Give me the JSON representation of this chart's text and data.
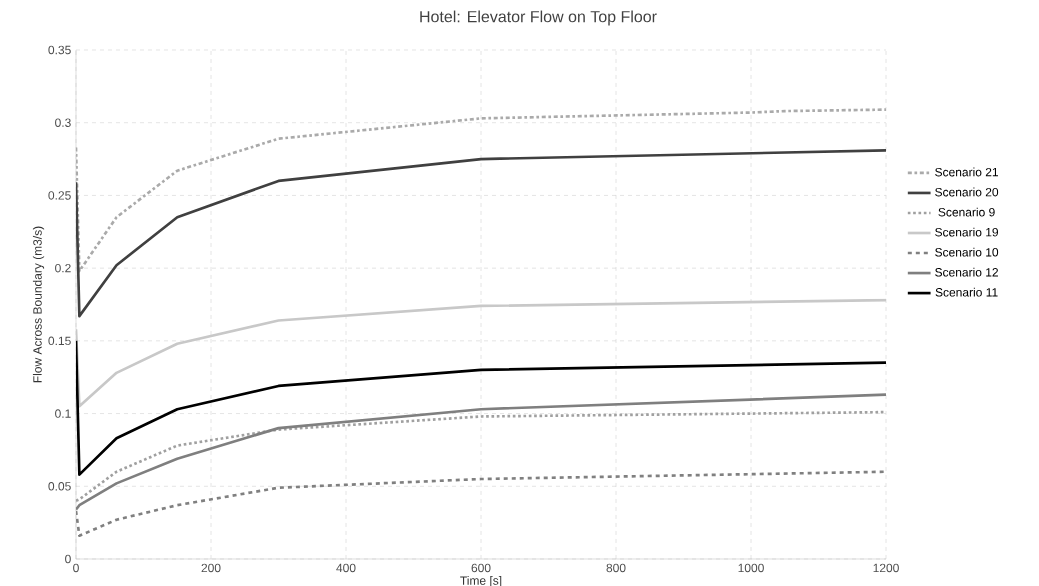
{
  "chart_data": {
    "type": "line",
    "title": "Hotel: Elevator Flow on Top Floor",
    "xlabel": "Time [s]",
    "ylabel": "Flow Across Boundary (m3/s)",
    "x": [
      0,
      5,
      60,
      150,
      300,
      600,
      1200
    ],
    "series": [
      {
        "name": "Scenario 21",
        "color": "#aaaaaa",
        "line_style": "dashdot",
        "x": [
          0,
          5,
          60,
          150,
          300,
          600,
          1000,
          1050,
          1200
        ],
        "values": [
          0.283,
          0.198,
          0.235,
          0.267,
          0.289,
          0.303,
          0.307,
          0.308,
          0.309
        ]
      },
      {
        "name": "Scenario 20",
        "color": "#404040",
        "line_style": "solid",
        "values": [
          0.259,
          0.167,
          0.202,
          0.235,
          0.26,
          0.275,
          0.281
        ]
      },
      {
        "name": "Scenario 9",
        "color": "#a0a0a0",
        "line_style": "dotted",
        "values": [
          0.04,
          0.041,
          0.06,
          0.078,
          0.089,
          0.098,
          0.101
        ]
      },
      {
        "name": "Scenario 19",
        "color": "#c8c8c8",
        "line_style": "solid",
        "values": [
          0.158,
          0.105,
          0.128,
          0.148,
          0.164,
          0.174,
          0.178
        ]
      },
      {
        "name": "Scenario 10",
        "color": "#808080",
        "line_style": "dashed",
        "values": [
          0.033,
          0.016,
          0.027,
          0.037,
          0.049,
          0.055,
          0.06
        ]
      },
      {
        "name": "Scenario 12",
        "color": "#7f7f7f",
        "line_style": "solid",
        "values": [
          0.034,
          0.037,
          0.052,
          0.069,
          0.09,
          0.103,
          0.113
        ]
      },
      {
        "name": "Scenario 11",
        "color": "#000000",
        "line_style": "solid",
        "values": [
          0.15,
          0.058,
          0.083,
          0.103,
          0.119,
          0.13,
          0.135
        ]
      }
    ],
    "xlim": [
      0,
      1200
    ],
    "xticks": [
      0,
      200,
      400,
      600,
      800,
      1000,
      1200
    ],
    "ylim": [
      0,
      0.35
    ],
    "yticks": [
      0,
      0.05,
      0.1,
      0.15,
      0.2,
      0.25,
      0.3,
      0.35
    ],
    "grid": true,
    "legend": "right"
  }
}
